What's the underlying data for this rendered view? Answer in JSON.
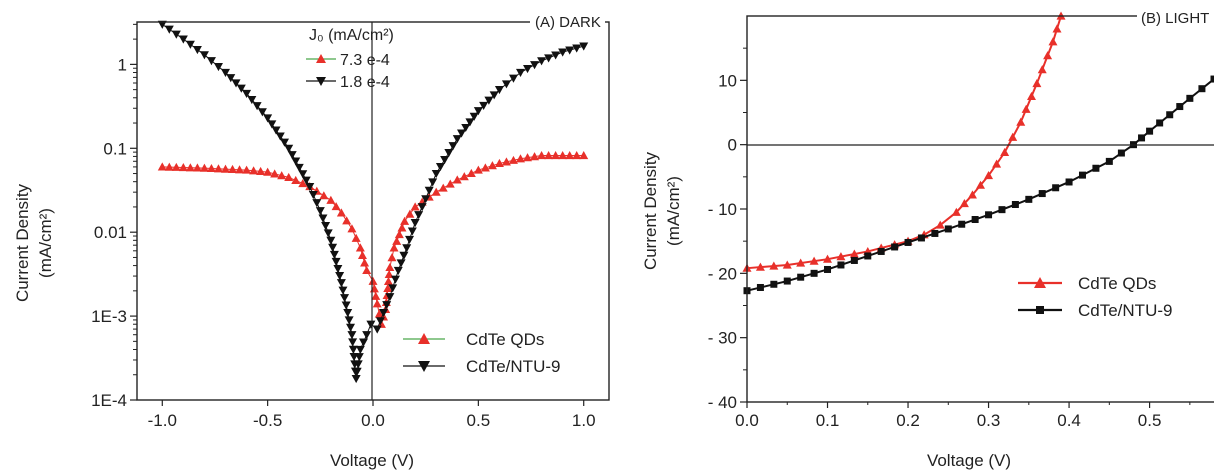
{
  "colors": {
    "cdte": "#e8302a",
    "ntu9": "#111111",
    "j0_line": "#4aa84a",
    "axis": "#222222"
  },
  "chart_data": [
    {
      "type": "scatter",
      "panel_label": "(A) DARK",
      "xlabel": "Voltage (V)",
      "ylabel_line1": "Current Density",
      "ylabel_line2": "(mA/cm²)",
      "x_scale": "linear",
      "y_scale": "log",
      "xlim": [
        -1.12,
        1.12
      ],
      "ylim": [
        0.0001,
        3.2
      ],
      "x_ticks": [
        -1.0,
        -0.5,
        0.0,
        0.5,
        1.0
      ],
      "x_tick_labels": [
        "-1.0",
        "-0.5",
        "0.0",
        "0.5",
        "1.0"
      ],
      "y_ticks": [
        0.0001,
        0.001,
        0.01,
        0.1,
        1
      ],
      "y_tick_labels": [
        "1E-4",
        "1E-3",
        "0.01",
        "0.1",
        "1"
      ],
      "j0_title": "J₀ (mA/cm²)",
      "j0_entries": [
        {
          "series": "CdTe QDs",
          "value": "7.3 e-4"
        },
        {
          "series": "CdTe/NTU-9",
          "value": "1.8 e-4"
        }
      ],
      "legend": {
        "position": "bottom-right",
        "entries": [
          "CdTe QDs",
          "CdTe/NTU-9"
        ]
      },
      "series": [
        {
          "name": "CdTe QDs",
          "marker": "triangle-up",
          "color": "#e8302a",
          "points": [
            [
              -1.0,
              0.06
            ],
            [
              -0.8,
              0.058
            ],
            [
              -0.6,
              0.055
            ],
            [
              -0.5,
              0.052
            ],
            [
              -0.4,
              0.045
            ],
            [
              -0.3,
              0.035
            ],
            [
              -0.2,
              0.024
            ],
            [
              -0.15,
              0.017
            ],
            [
              -0.1,
              0.011
            ],
            [
              -0.06,
              0.0065
            ],
            [
              -0.03,
              0.0035
            ],
            [
              0.0,
              0.0026
            ],
            [
              0.02,
              0.0014
            ],
            [
              0.04,
              0.0008
            ],
            [
              0.06,
              0.0012
            ],
            [
              0.08,
              0.0038
            ],
            [
              0.1,
              0.0065
            ],
            [
              0.15,
              0.0135
            ],
            [
              0.2,
              0.02
            ],
            [
              0.3,
              0.03
            ],
            [
              0.4,
              0.042
            ],
            [
              0.5,
              0.055
            ],
            [
              0.6,
              0.066
            ],
            [
              0.7,
              0.075
            ],
            [
              0.8,
              0.082
            ],
            [
              0.9,
              0.082
            ],
            [
              1.0,
              0.082
            ]
          ]
        },
        {
          "name": "CdTe/NTU-9",
          "marker": "triangle-down",
          "color": "#111111",
          "points": [
            [
              -1.0,
              3.0
            ],
            [
              -0.9,
              2.0
            ],
            [
              -0.8,
              1.3
            ],
            [
              -0.7,
              0.8
            ],
            [
              -0.6,
              0.45
            ],
            [
              -0.5,
              0.23
            ],
            [
              -0.4,
              0.1
            ],
            [
              -0.3,
              0.035
            ],
            [
              -0.25,
              0.018
            ],
            [
              -0.2,
              0.008
            ],
            [
              -0.15,
              0.0025
            ],
            [
              -0.12,
              0.0011
            ],
            [
              -0.1,
              0.0006
            ],
            [
              -0.08,
              0.00018
            ],
            [
              -0.06,
              0.0004
            ],
            [
              -0.03,
              0.0006
            ],
            [
              -0.01,
              0.0008
            ],
            [
              0.02,
              0.0007
            ],
            [
              0.05,
              0.0011
            ],
            [
              0.08,
              0.0017
            ],
            [
              0.12,
              0.0035
            ],
            [
              0.16,
              0.0065
            ],
            [
              0.2,
              0.013
            ],
            [
              0.25,
              0.025
            ],
            [
              0.3,
              0.05
            ],
            [
              0.4,
              0.13
            ],
            [
              0.5,
              0.28
            ],
            [
              0.6,
              0.5
            ],
            [
              0.7,
              0.8
            ],
            [
              0.8,
              1.1
            ],
            [
              0.9,
              1.4
            ],
            [
              1.0,
              1.65
            ]
          ]
        }
      ]
    },
    {
      "type": "line",
      "panel_label": "(B) LIGHT",
      "xlabel": "Voltage (V)",
      "ylabel_line1": "Current Density",
      "ylabel_line2": "(mA/cm²)",
      "x_scale": "linear",
      "y_scale": "linear",
      "xlim": [
        0.0,
        0.58
      ],
      "ylim": [
        -40,
        20
      ],
      "x_ticks": [
        0.0,
        0.1,
        0.2,
        0.3,
        0.4,
        0.5
      ],
      "x_tick_labels": [
        "0.0",
        "0.1",
        "0.2",
        "0.3",
        "0.4",
        "0.5"
      ],
      "y_ticks": [
        -40,
        -30,
        -20,
        -10,
        0,
        10
      ],
      "y_tick_labels": [
        "- 40",
        "- 30",
        "- 20",
        "- 10",
        "0",
        "10"
      ],
      "zero_line": true,
      "legend": {
        "position": "right",
        "entries": [
          "CdTe QDs",
          "CdTe/NTU-9"
        ]
      },
      "series": [
        {
          "name": "CdTe QDs",
          "marker": "triangle-up",
          "color": "#e8302a",
          "points": [
            [
              0.0,
              -19.2
            ],
            [
              0.05,
              -18.7
            ],
            [
              0.1,
              -17.8
            ],
            [
              0.15,
              -16.6
            ],
            [
              0.2,
              -15.0
            ],
            [
              0.22,
              -14.0
            ],
            [
              0.24,
              -12.5
            ],
            [
              0.26,
              -10.5
            ],
            [
              0.28,
              -7.8
            ],
            [
              0.3,
              -4.8
            ],
            [
              0.32,
              -1.2
            ],
            [
              0.34,
              3.5
            ],
            [
              0.36,
              9.5
            ],
            [
              0.38,
              16.0
            ],
            [
              0.39,
              20.0
            ]
          ]
        },
        {
          "name": "CdTe/NTU-9",
          "marker": "square",
          "color": "#111111",
          "points": [
            [
              0.0,
              -22.7
            ],
            [
              0.05,
              -21.2
            ],
            [
              0.1,
              -19.4
            ],
            [
              0.15,
              -17.3
            ],
            [
              0.2,
              -15.2
            ],
            [
              0.25,
              -13.1
            ],
            [
              0.3,
              -10.9
            ],
            [
              0.35,
              -8.5
            ],
            [
              0.4,
              -5.8
            ],
            [
              0.45,
              -2.6
            ],
            [
              0.48,
              0.0
            ],
            [
              0.5,
              2.1
            ],
            [
              0.55,
              7.2
            ],
            [
              0.58,
              10.2
            ]
          ]
        }
      ]
    }
  ]
}
